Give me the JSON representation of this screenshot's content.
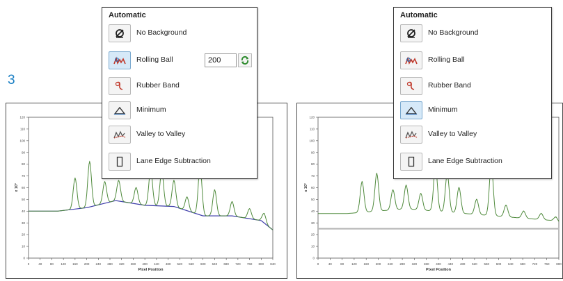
{
  "step_number": "3",
  "left_panel": {
    "title": "Automatic",
    "options": [
      {
        "label": "No Background",
        "icon": "empty-set-icon"
      },
      {
        "label": "Rolling Ball",
        "icon": "rolling-ball-icon"
      },
      {
        "label": "Rubber Band",
        "icon": "rubber-band-icon"
      },
      {
        "label": "Minimum",
        "icon": "minimum-triangle-icon"
      },
      {
        "label": "Valley to Valley",
        "icon": "valley-to-valley-icon"
      },
      {
        "label": "Lane Edge Subtraction",
        "icon": "lane-edge-icon"
      }
    ],
    "selected": "Rolling Ball",
    "rolling_ball_radius": "200"
  },
  "right_panel": {
    "title": "Automatic",
    "options": [
      {
        "label": "No Background",
        "icon": "empty-set-icon"
      },
      {
        "label": "Rolling Ball",
        "icon": "rolling-ball-icon"
      },
      {
        "label": "Rubber Band",
        "icon": "rubber-band-icon"
      },
      {
        "label": "Minimum",
        "icon": "minimum-triangle-icon"
      },
      {
        "label": "Valley to Valley",
        "icon": "valley-to-valley-icon"
      },
      {
        "label": "Lane Edge Subtraction",
        "icon": "lane-edge-icon"
      }
    ],
    "selected": "Minimum"
  },
  "colors": {
    "profile_line": "#4f8a3c",
    "background_line": "#3b3ba8",
    "baseline_gray": "#b8b8b8",
    "step_blue": "#1a7fc4"
  },
  "chart_data": [
    {
      "type": "line",
      "xlabel": "Pixel Position",
      "ylabel": "x 10³",
      "x_ticks": [
        "0",
        "40",
        "80",
        "120",
        "160",
        "200",
        "240",
        "280",
        "320",
        "360",
        "400",
        "440",
        "480",
        "520",
        "560",
        "600",
        "640",
        "680",
        "720",
        "760",
        "800",
        "840"
      ],
      "y_ticks": [
        "0",
        "10",
        "20",
        "30",
        "40",
        "50",
        "60",
        "70",
        "80",
        "90",
        "100",
        "110",
        "120"
      ],
      "xlim": [
        0,
        840
      ],
      "ylim": [
        0,
        120
      ],
      "series": [
        {
          "role": "profile",
          "peaks": [
            [
              160,
              68
            ],
            [
              210,
              82
            ],
            [
              262,
              65
            ],
            [
              310,
              66
            ],
            [
              370,
              60
            ],
            [
              420,
              75
            ],
            [
              458,
              74
            ],
            [
              500,
              66
            ],
            [
              545,
              52
            ],
            [
              590,
              78
            ],
            [
              640,
              58
            ],
            [
              700,
              48
            ],
            [
              760,
              42
            ],
            [
              810,
              38
            ]
          ],
          "baseline": [
            [
              0,
              40
            ],
            [
              100,
              40
            ],
            [
              200,
              43
            ],
            [
              300,
              49
            ],
            [
              400,
              45
            ],
            [
              500,
              44
            ],
            [
              600,
              36
            ],
            [
              700,
              36
            ],
            [
              800,
              32
            ],
            [
              840,
              24
            ]
          ]
        },
        {
          "role": "background",
          "points": [
            [
              0,
              40
            ],
            [
              100,
              40
            ],
            [
              200,
              43
            ],
            [
              300,
              49
            ],
            [
              400,
              45
            ],
            [
              500,
              44
            ],
            [
              600,
              36
            ],
            [
              700,
              36
            ],
            [
              800,
              32
            ],
            [
              840,
              24
            ]
          ]
        }
      ]
    },
    {
      "type": "line",
      "xlabel": "Pixel Position",
      "ylabel": "x 10³",
      "x_ticks": [
        "0",
        "40",
        "80",
        "120",
        "160",
        "200",
        "240",
        "280",
        "320",
        "360",
        "400",
        "440",
        "480",
        "520",
        "560",
        "600",
        "640",
        "680",
        "720",
        "760",
        "800"
      ],
      "y_ticks": [
        "0",
        "10",
        "20",
        "30",
        "40",
        "50",
        "60",
        "70",
        "80",
        "90",
        "100",
        "110",
        "120"
      ],
      "xlim": [
        0,
        820
      ],
      "ylim": [
        0,
        120
      ],
      "series": [
        {
          "role": "profile",
          "peaks": [
            [
              150,
              65
            ],
            [
              200,
              72
            ],
            [
              255,
              58
            ],
            [
              300,
              62
            ],
            [
              350,
              55
            ],
            [
              400,
              78
            ],
            [
              440,
              72
            ],
            [
              480,
              60
            ],
            [
              540,
              50
            ],
            [
              590,
              80
            ],
            [
              640,
              45
            ],
            [
              700,
              40
            ],
            [
              760,
              38
            ],
            [
              810,
              35
            ]
          ],
          "baseline": [
            [
              0,
              38
            ],
            [
              100,
              38
            ],
            [
              200,
              40
            ],
            [
              300,
              42
            ],
            [
              400,
              40
            ],
            [
              500,
              38
            ],
            [
              600,
              36
            ],
            [
              700,
              34
            ],
            [
              800,
              32
            ],
            [
              820,
              30
            ]
          ]
        },
        {
          "role": "background",
          "points": [
            [
              0,
              25
            ],
            [
              820,
              25
            ]
          ]
        }
      ]
    }
  ]
}
